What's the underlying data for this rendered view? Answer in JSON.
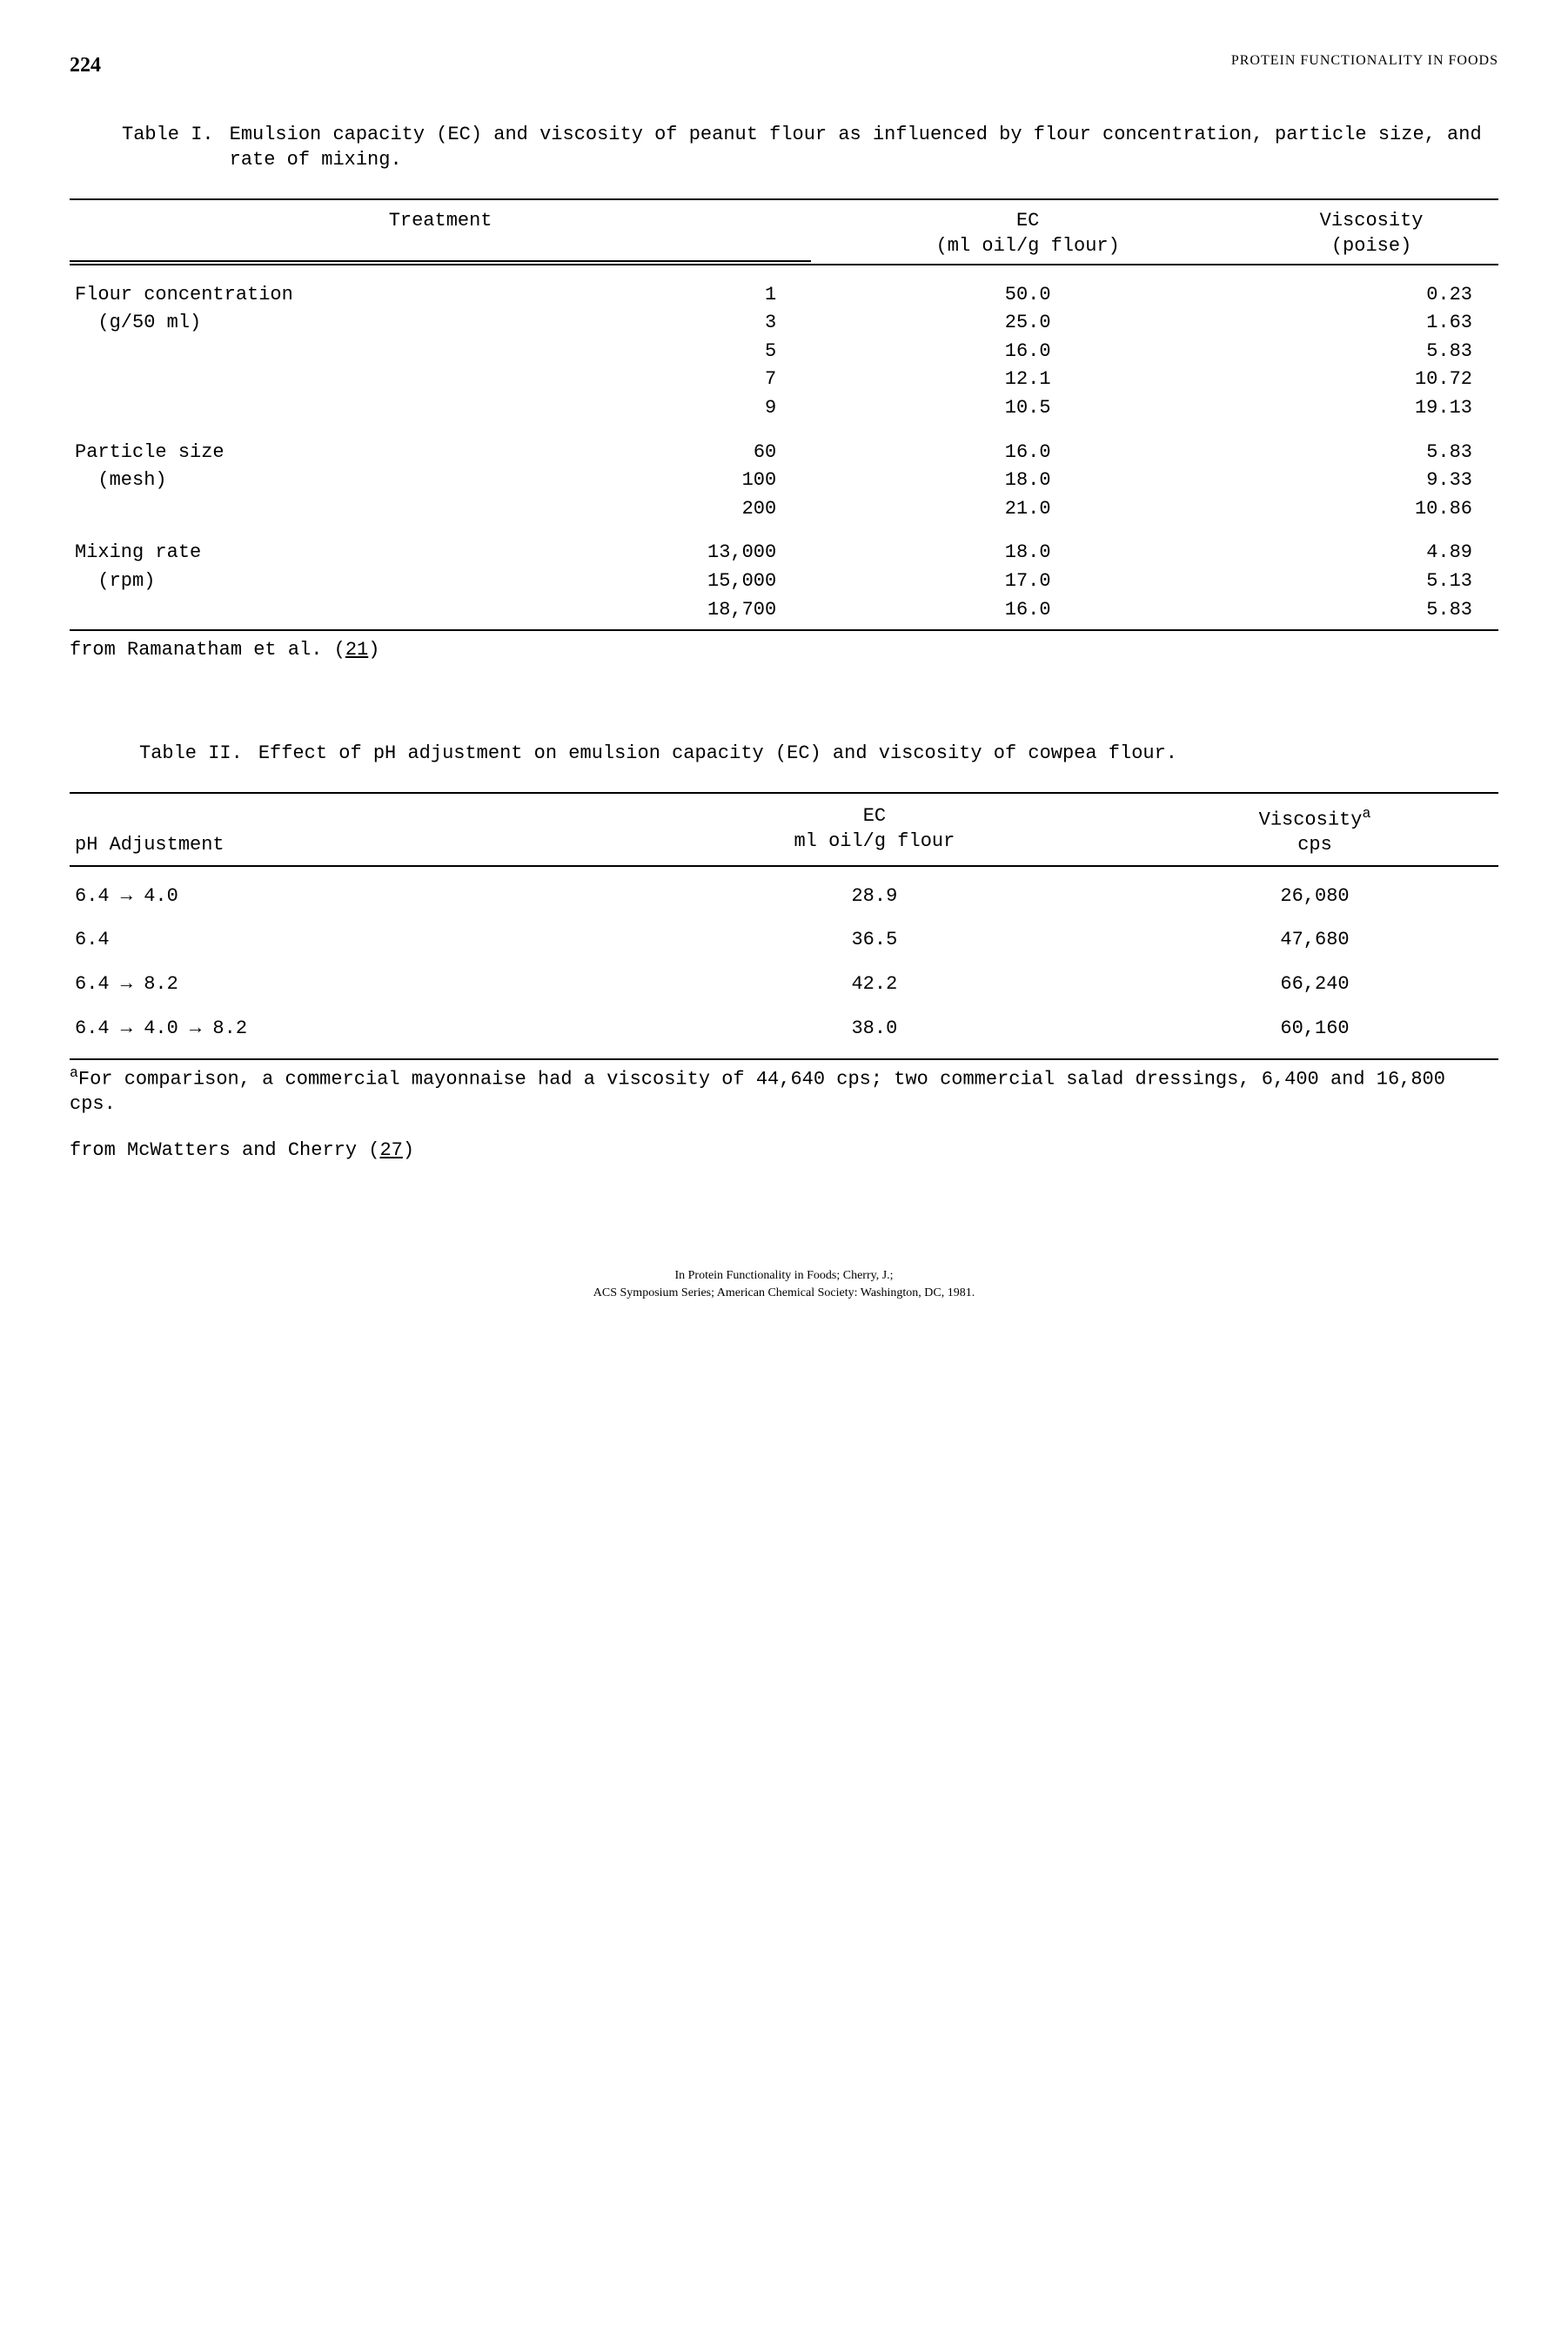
{
  "header": {
    "page_number": "224",
    "running_head": "PROTEIN FUNCTIONALITY IN FOODS"
  },
  "table1": {
    "label": "Table I.",
    "caption": "Emulsion capacity (EC) and viscosity of peanut flour as influenced by flour concentration, particle size, and rate of mixing.",
    "columns": {
      "treatment": "Treatment",
      "ec_line1": "EC",
      "ec_line2": "(ml oil/g flour)",
      "visc_line1": "Viscosity",
      "visc_line2": "(poise)"
    },
    "groups": [
      {
        "name_line1": "Flour concentration",
        "name_line2": "(g/50 ml)",
        "rows": [
          {
            "level": "1",
            "ec": "50.0",
            "visc": "0.23"
          },
          {
            "level": "3",
            "ec": "25.0",
            "visc": "1.63"
          },
          {
            "level": "5",
            "ec": "16.0",
            "visc": "5.83"
          },
          {
            "level": "7",
            "ec": "12.1",
            "visc": "10.72"
          },
          {
            "level": "9",
            "ec": "10.5",
            "visc": "19.13"
          }
        ]
      },
      {
        "name_line1": "Particle size",
        "name_line2": "(mesh)",
        "rows": [
          {
            "level": "60",
            "ec": "16.0",
            "visc": "5.83"
          },
          {
            "level": "100",
            "ec": "18.0",
            "visc": "9.33"
          },
          {
            "level": "200",
            "ec": "21.0",
            "visc": "10.86"
          }
        ]
      },
      {
        "name_line1": "Mixing rate",
        "name_line2": "(rpm)",
        "rows": [
          {
            "level": "13,000",
            "ec": "18.0",
            "visc": "4.89"
          },
          {
            "level": "15,000",
            "ec": "17.0",
            "visc": "5.13"
          },
          {
            "level": "18,700",
            "ec": "16.0",
            "visc": "5.83"
          }
        ]
      }
    ],
    "source_prefix": "from Ramanatham et al. (",
    "source_ref": "21",
    "source_suffix": ")"
  },
  "table2": {
    "label": "Table II.",
    "caption": "Effect of pH adjustment on emulsion capacity (EC) and viscosity of cowpea flour.",
    "columns": {
      "ph": "pH Adjustment",
      "ec_line1": "EC",
      "ec_line2": "ml oil/g flour",
      "visc_line1": "Viscosity",
      "visc_sup": "a",
      "visc_line2": "cps"
    },
    "rows": [
      {
        "ph": "6.4 → 4.0",
        "ec": "28.9",
        "visc": "26,080"
      },
      {
        "ph": "6.4",
        "ec": "36.5",
        "visc": "47,680"
      },
      {
        "ph": "6.4 → 8.2",
        "ec": "42.2",
        "visc": "66,240"
      },
      {
        "ph": "6.4 → 4.0 → 8.2",
        "ec": "38.0",
        "visc": "60,160"
      }
    ],
    "footnote_sup": "a",
    "footnote": "For comparison, a commercial mayonnaise had a viscosity of 44,640 cps; two commercial salad dressings, 6,400 and 16,800 cps.",
    "source_prefix": "from McWatters and Cherry (",
    "source_ref": "27",
    "source_suffix": ")"
  },
  "footer": {
    "line1": "In Protein Functionality in Foods; Cherry, J.;",
    "line2": "ACS Symposium Series; American Chemical Society: Washington, DC, 1981."
  }
}
